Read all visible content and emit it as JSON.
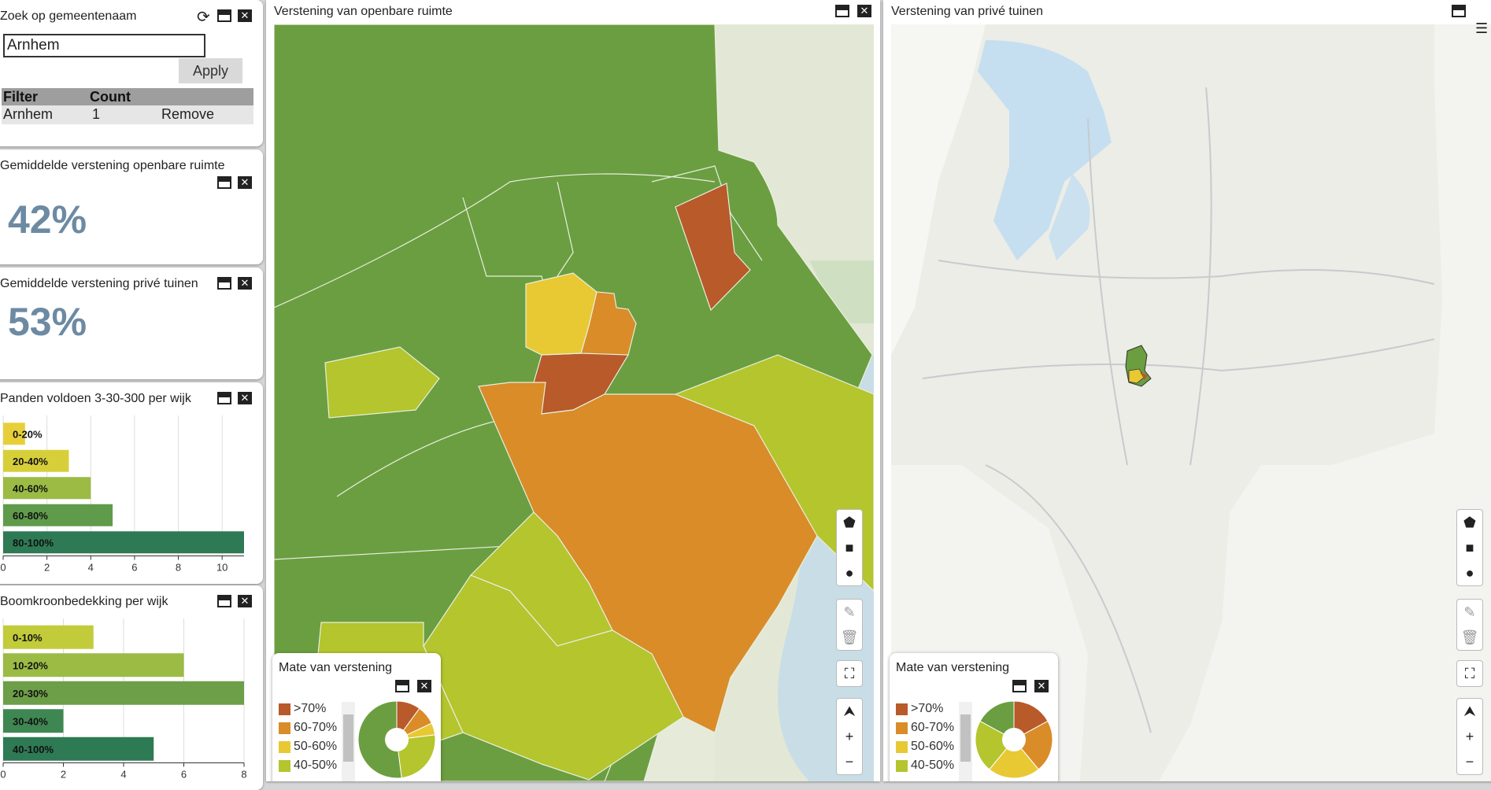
{
  "search_panel": {
    "title": "Zoek op gemeentenaam",
    "input_value": "Arnhem",
    "apply_label": "Apply",
    "table_headers": [
      "Filter",
      "Count"
    ],
    "rows": [
      {
        "filter": "Arnhem",
        "count": "1",
        "action": "Remove"
      }
    ]
  },
  "kpi_public": {
    "title": "Gemiddelde verstening openbare ruimte",
    "value": "42%"
  },
  "kpi_private": {
    "title": "Gemiddelde verstening privé tuinen",
    "value": "53%"
  },
  "chart_panels": {
    "panden_title": "Panden voldoen 3-30-300 per wijk",
    "boom_title": "Boomkroonbedekking per wijk"
  },
  "chart_data": [
    {
      "type": "bar",
      "orientation": "horizontal",
      "title": "Panden voldoen 3-30-300 per wijk",
      "categories": [
        "0-20%",
        "20-40%",
        "40-60%",
        "60-80%",
        "80-100%"
      ],
      "values": [
        1,
        3,
        4,
        5,
        11
      ],
      "xlim": [
        0,
        11
      ],
      "xticks": [
        "0",
        "2",
        "4",
        "6",
        "8",
        "10"
      ],
      "colors": [
        "#e8cf3a",
        "#d7cf3a",
        "#9bbb45",
        "#5f9b4b",
        "#2e7a55"
      ],
      "grid": true
    },
    {
      "type": "bar",
      "orientation": "horizontal",
      "title": "Boomkroonbedekking per wijk",
      "categories": [
        "0-10%",
        "10-20%",
        "20-30%",
        "30-40%",
        "40-100%"
      ],
      "values": [
        3,
        6,
        8,
        2,
        5
      ],
      "xlim": [
        0,
        8
      ],
      "xticks": [
        "0",
        "2",
        "4",
        "6",
        "8"
      ],
      "colors": [
        "#c2cc3a",
        "#9bbb45",
        "#6d9e48",
        "#3f8752",
        "#2e7a55"
      ],
      "grid": true
    }
  ],
  "map_left": {
    "title": "Verstening van openbare ruimte"
  },
  "map_right": {
    "title": "Verstening van privé tuinen"
  },
  "legend": {
    "title": "Mate van verstening",
    "items": [
      {
        "label": ">70%",
        "color": "#b85a2a"
      },
      {
        "label": "60-70%",
        "color": "#d98c28"
      },
      {
        "label": "50-60%",
        "color": "#e8c934"
      },
      {
        "label": "40-50%",
        "color": "#b4c52e"
      }
    ]
  },
  "legend_left_pie": [
    {
      "color": "#b85a2a",
      "value": 10
    },
    {
      "color": "#d98c28",
      "value": 8
    },
    {
      "color": "#e8c934",
      "value": 5
    },
    {
      "color": "#b4c52e",
      "value": 25
    },
    {
      "color": "#6b9e40",
      "value": 52
    }
  ],
  "legend_right_pie": [
    {
      "color": "#b85a2a",
      "value": 17
    },
    {
      "color": "#d98c28",
      "value": 22
    },
    {
      "color": "#e8c934",
      "value": 22
    },
    {
      "color": "#b4c52e",
      "value": 22
    },
    {
      "color": "#6b9e40",
      "value": 17
    }
  ]
}
